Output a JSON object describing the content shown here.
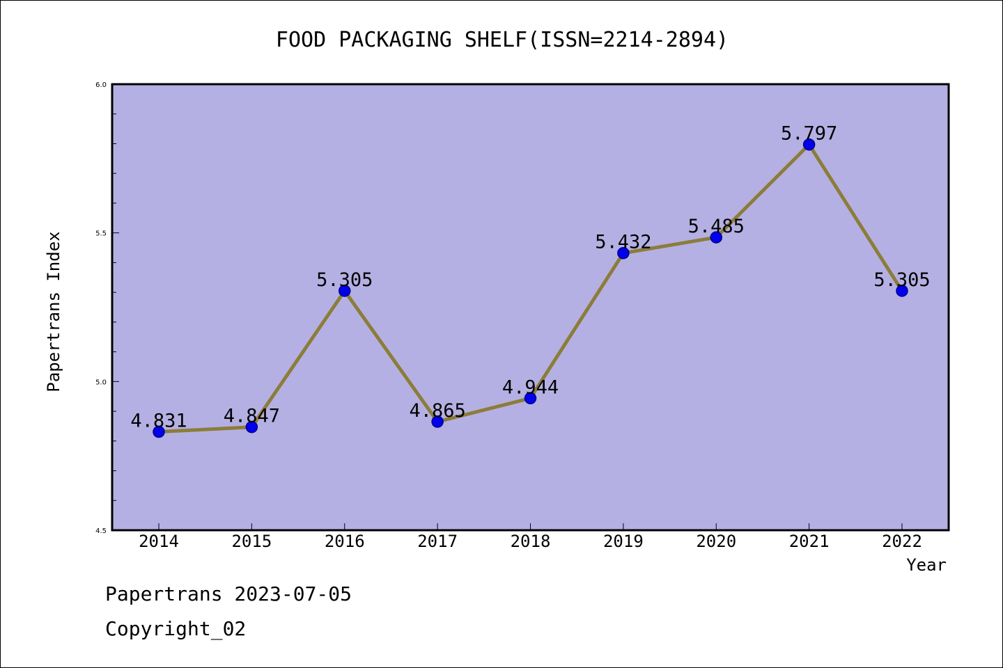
{
  "chart_data": {
    "type": "line",
    "title": "FOOD PACKAGING SHELF(ISSN=2214-2894)",
    "xlabel": "Year",
    "ylabel": "Papertrans Index",
    "categories": [
      "2014",
      "2015",
      "2016",
      "2017",
      "2018",
      "2019",
      "2020",
      "2021",
      "2022"
    ],
    "series": [
      {
        "name": "Papertrans Index",
        "values": [
          4.831,
          4.847,
          5.305,
          4.865,
          4.944,
          5.432,
          5.485,
          5.797,
          5.305
        ],
        "labels": [
          "4.831",
          "4.847",
          "5.305",
          "4.865",
          "4.944",
          "5.432",
          "5.485",
          "5.797",
          "5.305"
        ]
      }
    ],
    "ylim": [
      4.5,
      6.0
    ],
    "yticks": [
      4.5,
      5.0,
      5.5,
      6.0
    ],
    "ytick_labels": [
      "4.5",
      "5.0",
      "5.5",
      "6.0"
    ],
    "grid": false,
    "colors": {
      "plot_background": "#b5b0e3",
      "line": "#8b7d3a",
      "marker": "#0000ee",
      "marker_edge": "#00008b"
    }
  },
  "footer": {
    "line1": "Papertrans 2023-07-05",
    "line2": "Copyright_02"
  }
}
